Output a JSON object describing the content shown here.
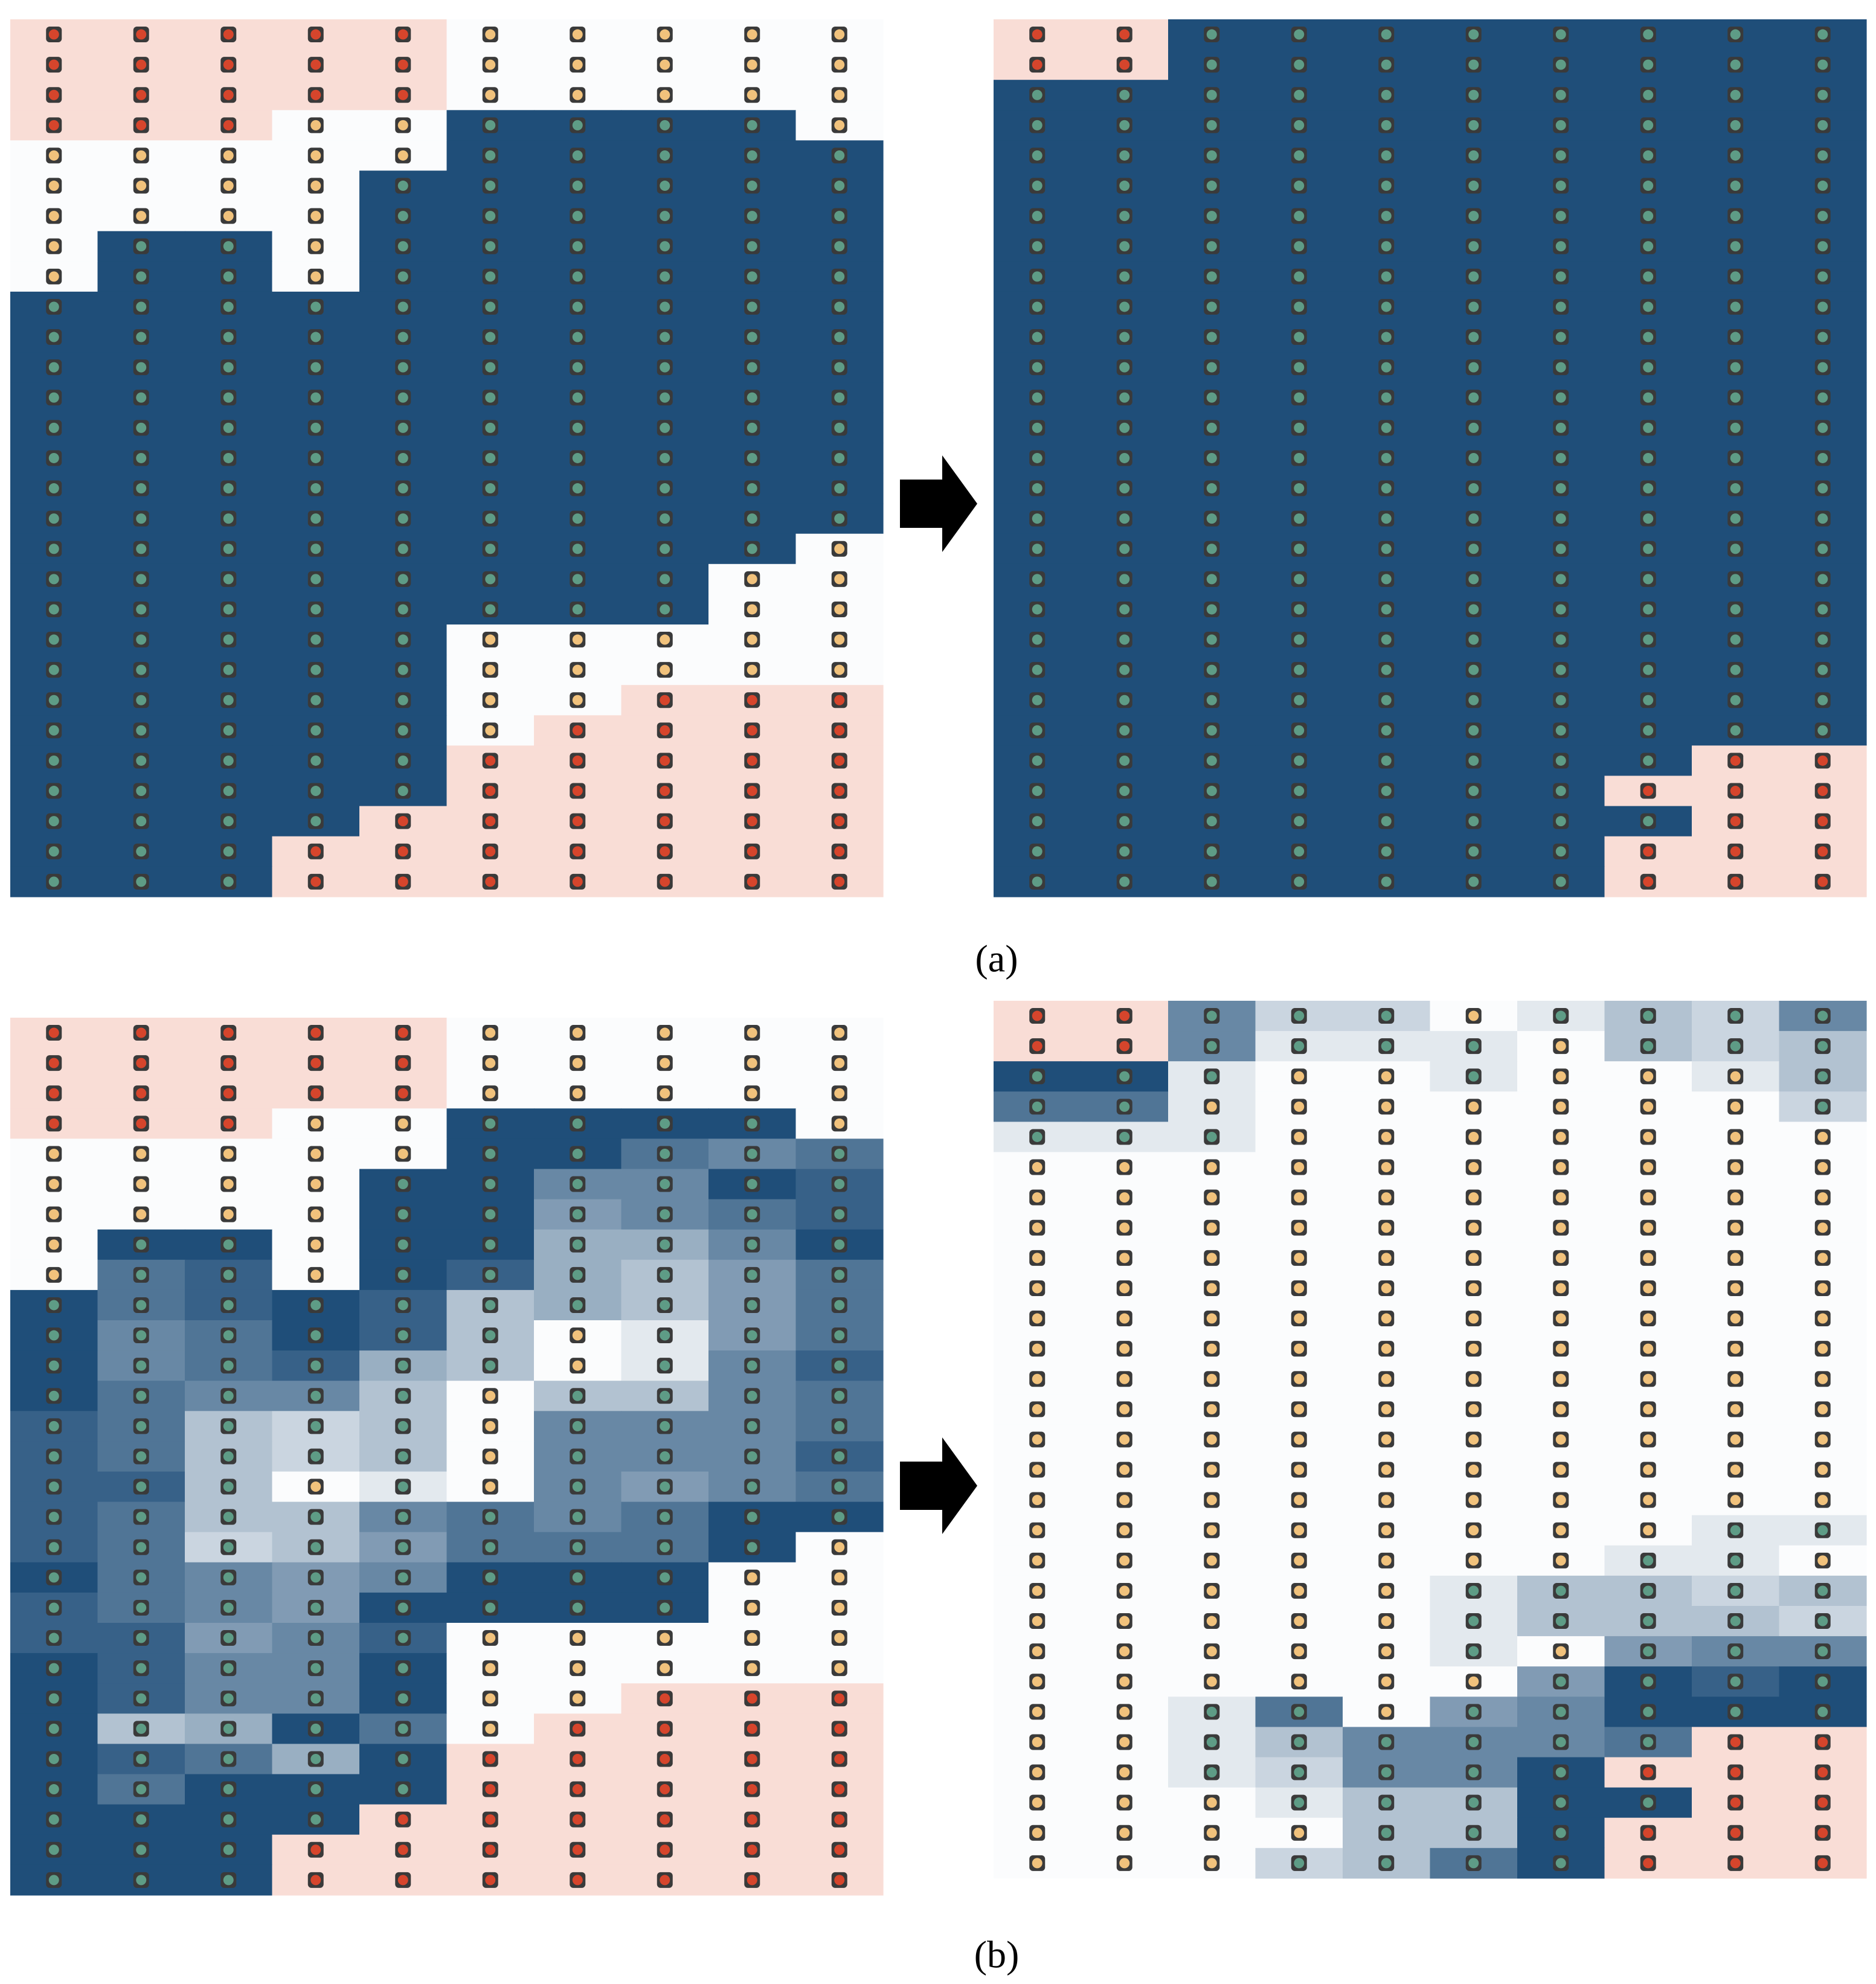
{
  "panels": [
    {
      "label": "(a)",
      "before": {
        "dots": [
          "rrrrryyyyy",
          "rrrrryyyyy",
          "rrrrryyyyy",
          "rrryyggggy",
          "yyyyyggggg",
          "yyyygggggg",
          "yyyygggggg",
          "yggygggggg",
          "yggygggggg",
          "gggggggggg",
          "gggggggggg",
          "gggggggggg",
          "gggggggggg",
          "gggggggggg",
          "gggggggggg",
          "gggggggggg",
          "gggggggggg",
          "gggggggggy",
          "ggggggggyy",
          "ggggggggyy",
          "gggggyyyyy",
          "gggggyyyyy",
          "gggggyyrrr",
          "gggggyrrrr",
          "gggggrrrrr",
          "gggggrrrrr",
          "ggggrrrrrr",
          "gggrrrrrrr",
          "gggrrrrrrr"
        ]
      },
      "after": {
        "dots": [
          "rrgggggggg",
          "rrgggggggg",
          "gggggggggg",
          "gggggggggg",
          "gggggggggg",
          "gggggggggg",
          "gggggggggg",
          "gggggggggg",
          "gggggggggg",
          "gggggggggg",
          "gggggggggg",
          "gggggggggg",
          "gggggggggg",
          "gggggggggg",
          "gggggggggg",
          "gggggggggg",
          "gggggggggg",
          "gggggggggg",
          "gggggggggg",
          "gggggggggg",
          "gggggggggg",
          "gggggggggg",
          "gggggggggg",
          "gggggggggg",
          "ggggggggrr",
          "gggggggrrr",
          "ggggggggrr",
          "gggggggrrr",
          "gggggggrrr"
        ]
      }
    },
    {
      "label": "(b)",
      "before": {
        "dots": [
          "rrrrryyyyy",
          "rrrrryyyyy",
          "rrrrryyyyy",
          "rrryyggggy",
          "yyyyyggggg",
          "yyyygggggg",
          "yyyygggggg",
          "yggygggggg",
          "yggygggggg",
          "gggggggggg",
          "ggggggyggg",
          "ggggggyggg",
          "gggggygggg",
          "gggggygggg",
          "gggggygggg",
          "gggygygggg",
          "gggggggggg",
          "gggggggggy",
          "ggggggggyy",
          "ggggggggyy",
          "gggggyyyyy",
          "gggggyyyyy",
          "gggggyyrrr",
          "gggggyrrrr",
          "gggggrrrrr",
          "gggggrrrrr",
          "ggggrrrrrr",
          "gggrrrrrrr",
          "gggrrrrrrr"
        ],
        "fill": [
          "ppppp00000",
          "ppppp00000",
          "ppppp00000",
          "ppp0099990",
          "0000099767",
          "0000996698",
          "0000995678",
          "0990994469",
          "0780984357",
          "9789834357",
          "9679830157",
          "9678430168",
          "9766303367",
          "8732306667",
          "8732306668",
          "8830106567",
          "8733676799",
          "8723577790",
          "9765699900",
          "8765999900",
          "8856800000",
          "9866900000",
          "9866900ppp",
          "934970pppp",
          "98749ppppp",
          "97999ppppp",
          "9999pppppp",
          "999ppppppp",
          "999ppppppp"
        ]
      },
      "after": {
        "dots": [
          "rrgggygggg",
          "rrggggyggg",
          "gggyygyyyg",
          "ggyyyyyyyg",
          "gggyyyyyyy",
          "yyyyyyyyyy",
          "yyyyyyyyyy",
          "yyyyyyyyyy",
          "yyyyyyyyyy",
          "yyyyyyyyyy",
          "yyyyyyyyyy",
          "yyyyyyyyyy",
          "yyyyyyyyyy",
          "yyyyyyyyyy",
          "yyyyyyyyyy",
          "yyyyyyyyyy",
          "yyyyyyyyyy",
          "yyyyyyyygg",
          "yyyyyyyggy",
          "yyyyyggggg",
          "yyyyyggggg",
          "yyyyygyggg",
          "yyyyyygggg",
          "yyggyggggg",
          "yyggggggrr",
          "yygggggrrr",
          "yyygggggrr",
          "yyyygggrrr",
          "yyyggggrrr"
        ],
        "fill": [
          "pp62201326",
          "pp61110323",
          "9910010013",
          "7710000002",
          "1110000000",
          "0000000000",
          "0000000000",
          "0000000000",
          "0000000000",
          "0000000000",
          "0000000000",
          "0000000000",
          "0000000000",
          "0000000000",
          "0000000000",
          "0000000000",
          "0000000000",
          "0000000011",
          "0000000110",
          "0000013323",
          "0000013332",
          "0000010566",
          "0000005989",
          "0017056999",
          "00136667pp",
          "0012669ppp",
          "00013399pp",
          "0000339ppp",
          "0002379ppp"
        ]
      }
    }
  ]
}
